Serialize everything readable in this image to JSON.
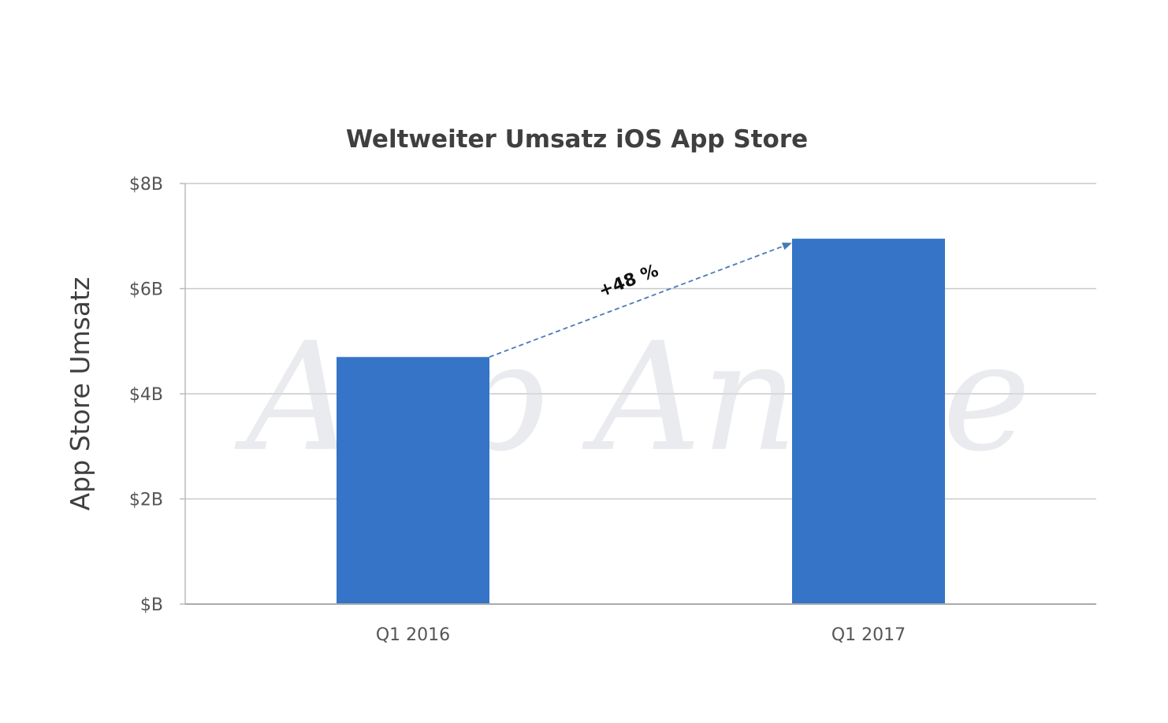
{
  "chart_data": {
    "type": "bar",
    "title": "Weltweiter Umsatz iOS App Store",
    "xlabel": "",
    "ylabel": "App Store Umsatz",
    "categories": [
      "Q1 2016",
      "Q1 2017"
    ],
    "values": [
      4.7,
      6.95
    ],
    "ylim": [
      0,
      8
    ],
    "yticks": [
      0,
      2,
      4,
      6,
      8
    ],
    "ytick_labels": [
      "$B",
      "$2B",
      "$4B",
      "$6B",
      "$8B"
    ],
    "grid": true,
    "legend": "none",
    "bar_color": "#3574c6",
    "annotation": {
      "text": "+48 %",
      "from_category": "Q1 2016",
      "to_category": "Q1 2017",
      "color": "#4a7ab6"
    },
    "watermark": "App Annie"
  }
}
